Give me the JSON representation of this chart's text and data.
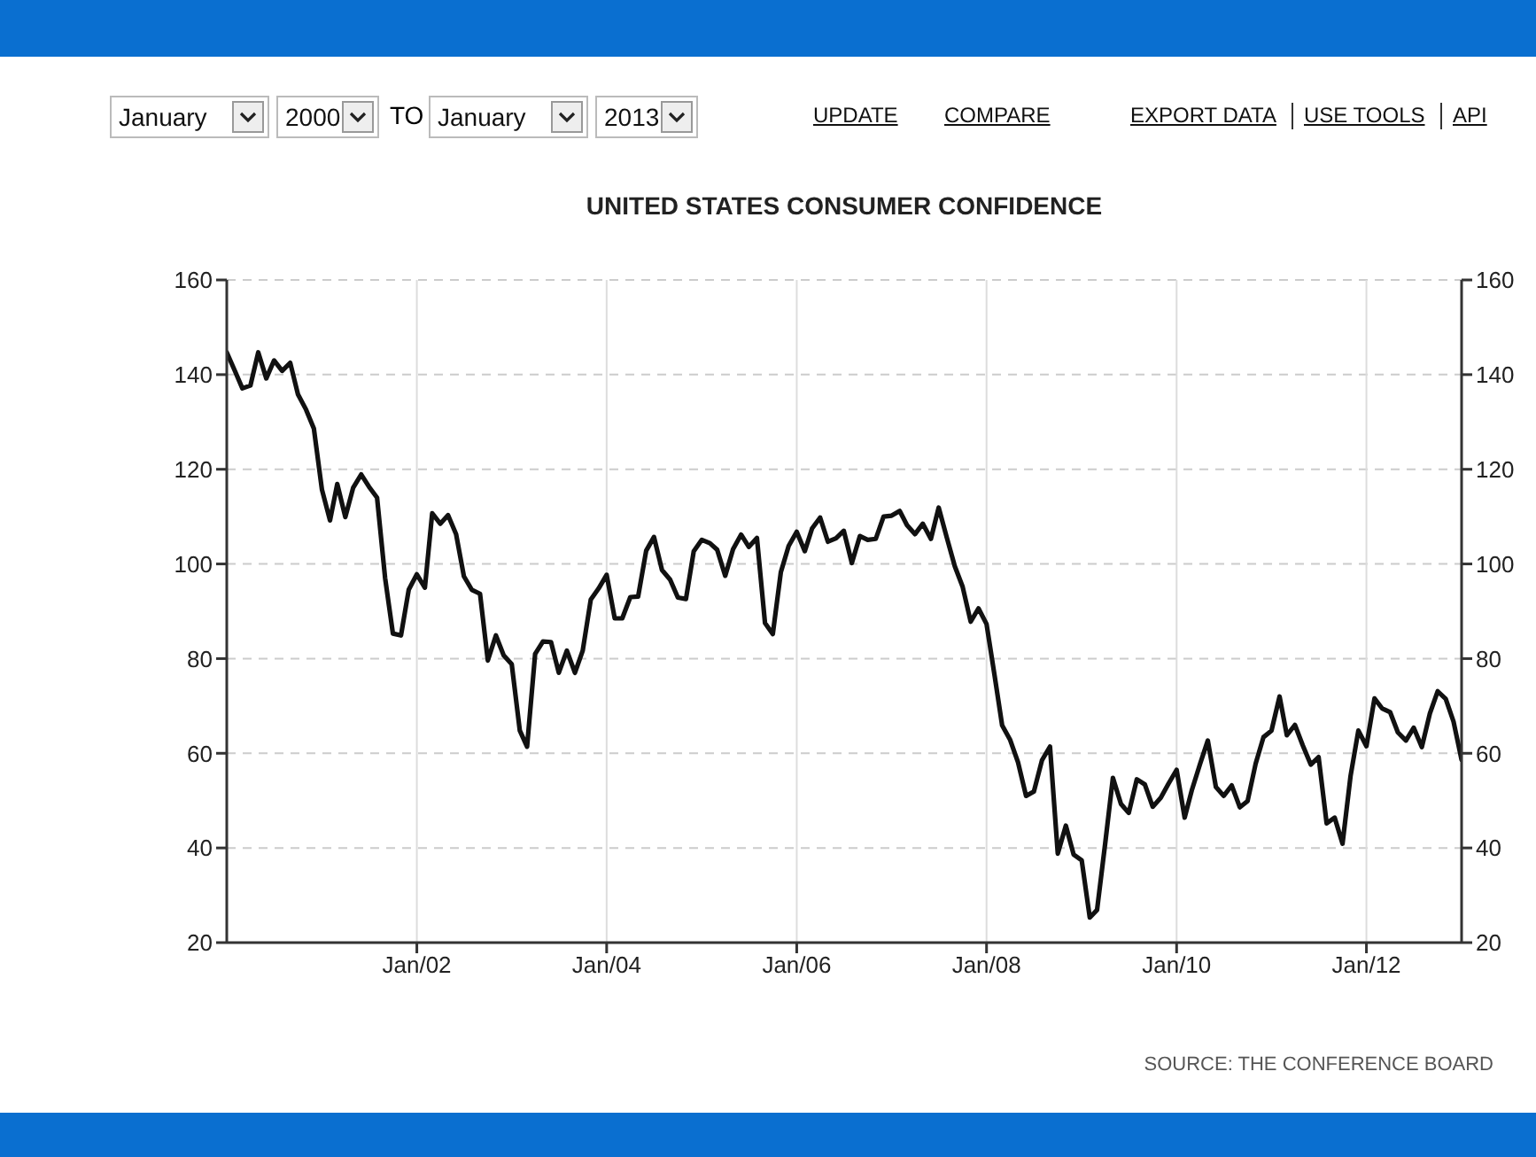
{
  "chart_data": {
    "type": "line",
    "title": "UNITED STATES CONSUMER CONFIDENCE",
    "annotations": [
      "January",
      "2000",
      "TO",
      "January",
      "2013",
      "UPDATE",
      "COMPARE",
      "EXPORT DATA",
      "USE TOOLS",
      "API",
      "SOURCE: THE CONFERENCE BOARD"
    ],
    "x": [
      "2000-01",
      "2000-02",
      "2000-03",
      "2000-04",
      "2000-05",
      "2000-06",
      "2000-07",
      "2000-08",
      "2000-09",
      "2000-10",
      "2000-11",
      "2000-12",
      "2001-01",
      "2001-02",
      "2001-03",
      "2001-04",
      "2001-05",
      "2001-06",
      "2001-07",
      "2001-08",
      "2001-09",
      "2001-10",
      "2001-11",
      "2001-12",
      "2002-01",
      "2002-02",
      "2002-03",
      "2002-04",
      "2002-05",
      "2002-06",
      "2002-07",
      "2002-08",
      "2002-09",
      "2002-10",
      "2002-11",
      "2002-12",
      "2003-01",
      "2003-02",
      "2003-03",
      "2003-04",
      "2003-05",
      "2003-06",
      "2003-07",
      "2003-08",
      "2003-09",
      "2003-10",
      "2003-11",
      "2003-12",
      "2004-01",
      "2004-02",
      "2004-03",
      "2004-04",
      "2004-05",
      "2004-06",
      "2004-07",
      "2004-08",
      "2004-09",
      "2004-10",
      "2004-11",
      "2004-12",
      "2005-01",
      "2005-02",
      "2005-03",
      "2005-04",
      "2005-05",
      "2005-06",
      "2005-07",
      "2005-08",
      "2005-09",
      "2005-10",
      "2005-11",
      "2005-12",
      "2006-01",
      "2006-02",
      "2006-03",
      "2006-04",
      "2006-05",
      "2006-06",
      "2006-07",
      "2006-08",
      "2006-09",
      "2006-10",
      "2006-11",
      "2006-12",
      "2007-01",
      "2007-02",
      "2007-03",
      "2007-04",
      "2007-05",
      "2007-06",
      "2007-07",
      "2007-08",
      "2007-09",
      "2007-10",
      "2007-11",
      "2007-12",
      "2008-01",
      "2008-02",
      "2008-03",
      "2008-04",
      "2008-05",
      "2008-06",
      "2008-07",
      "2008-08",
      "2008-09",
      "2008-10",
      "2008-11",
      "2008-12",
      "2009-01",
      "2009-02",
      "2009-03",
      "2009-04",
      "2009-05",
      "2009-06",
      "2009-07",
      "2009-08",
      "2009-09",
      "2009-10",
      "2009-11",
      "2009-12",
      "2010-01",
      "2010-02",
      "2010-03",
      "2010-04",
      "2010-05",
      "2010-06",
      "2010-07",
      "2010-08",
      "2010-09",
      "2010-10",
      "2010-11",
      "2010-12",
      "2011-01",
      "2011-02",
      "2011-03",
      "2011-04",
      "2011-05",
      "2011-06",
      "2011-07",
      "2011-08",
      "2011-09",
      "2011-10",
      "2011-11",
      "2011-12",
      "2012-01",
      "2012-02",
      "2012-03",
      "2012-04",
      "2012-05",
      "2012-06",
      "2012-07",
      "2012-08",
      "2012-09",
      "2012-10",
      "2012-11",
      "2012-12",
      "2013-01"
    ],
    "series": [
      {
        "color": "#111111",
        "values": [
          144.7,
          140.8,
          137.1,
          137.7,
          144.7,
          139.2,
          143.0,
          140.8,
          142.5,
          135.8,
          132.6,
          128.6,
          115.7,
          109.2,
          116.9,
          109.9,
          116.1,
          118.9,
          116.3,
          114.0,
          97.0,
          85.3,
          84.9,
          94.6,
          97.8,
          95.0,
          110.7,
          108.5,
          110.3,
          106.3,
          97.4,
          94.5,
          93.7,
          79.6,
          84.9,
          80.7,
          78.8,
          64.8,
          61.4,
          81.0,
          83.6,
          83.5,
          77.0,
          81.7,
          77.0,
          81.7,
          92.5,
          94.8,
          97.7,
          88.5,
          88.5,
          93.0,
          93.1,
          102.8,
          105.7,
          98.7,
          96.7,
          92.9,
          92.6,
          102.7,
          105.1,
          104.4,
          103.0,
          97.5,
          103.1,
          106.2,
          103.6,
          105.5,
          87.5,
          85.2,
          98.3,
          103.8,
          106.8,
          102.7,
          107.5,
          109.8,
          104.7,
          105.4,
          107.0,
          100.2,
          105.9,
          105.1,
          105.3,
          110.0,
          110.2,
          111.2,
          108.2,
          106.3,
          108.5,
          105.3,
          111.9,
          105.6,
          99.5,
          95.2,
          87.8,
          90.6,
          87.3,
          76.4,
          65.9,
          62.8,
          58.1,
          51.0,
          51.9,
          58.5,
          61.4,
          38.8,
          44.7,
          38.6,
          37.4,
          25.3,
          26.9,
          40.8,
          54.8,
          49.3,
          47.4,
          54.5,
          53.4,
          48.7,
          50.6,
          53.6,
          56.5,
          46.4,
          52.3,
          57.7,
          62.7,
          52.9,
          51.0,
          53.2,
          48.6,
          49.9,
          57.8,
          63.4,
          64.8,
          72.0,
          63.8,
          66.0,
          61.7,
          57.6,
          59.2,
          45.2,
          46.4,
          40.9,
          55.2,
          64.8,
          61.5,
          71.6,
          69.5,
          68.7,
          64.4,
          62.7,
          65.4,
          61.3,
          68.4,
          73.1,
          71.5,
          66.7,
          58.6
        ]
      }
    ],
    "xlim": [
      "2000-01",
      "2013-01"
    ],
    "xticks": [
      {
        "value": "2002-01",
        "label": "Jan/02"
      },
      {
        "value": "2004-01",
        "label": "Jan/04"
      },
      {
        "value": "2006-01",
        "label": "Jan/06"
      },
      {
        "value": "2008-01",
        "label": "Jan/08"
      },
      {
        "value": "2010-01",
        "label": "Jan/10"
      },
      {
        "value": "2012-01",
        "label": "Jan/12"
      }
    ],
    "ylim": [
      20,
      160
    ],
    "yticks": [
      20,
      40,
      60,
      80,
      100,
      120,
      140,
      160
    ],
    "y2lim": [
      20,
      160
    ],
    "y2ticks": [
      20,
      40,
      60,
      80,
      100,
      120,
      140,
      160
    ],
    "grid": true
  }
}
